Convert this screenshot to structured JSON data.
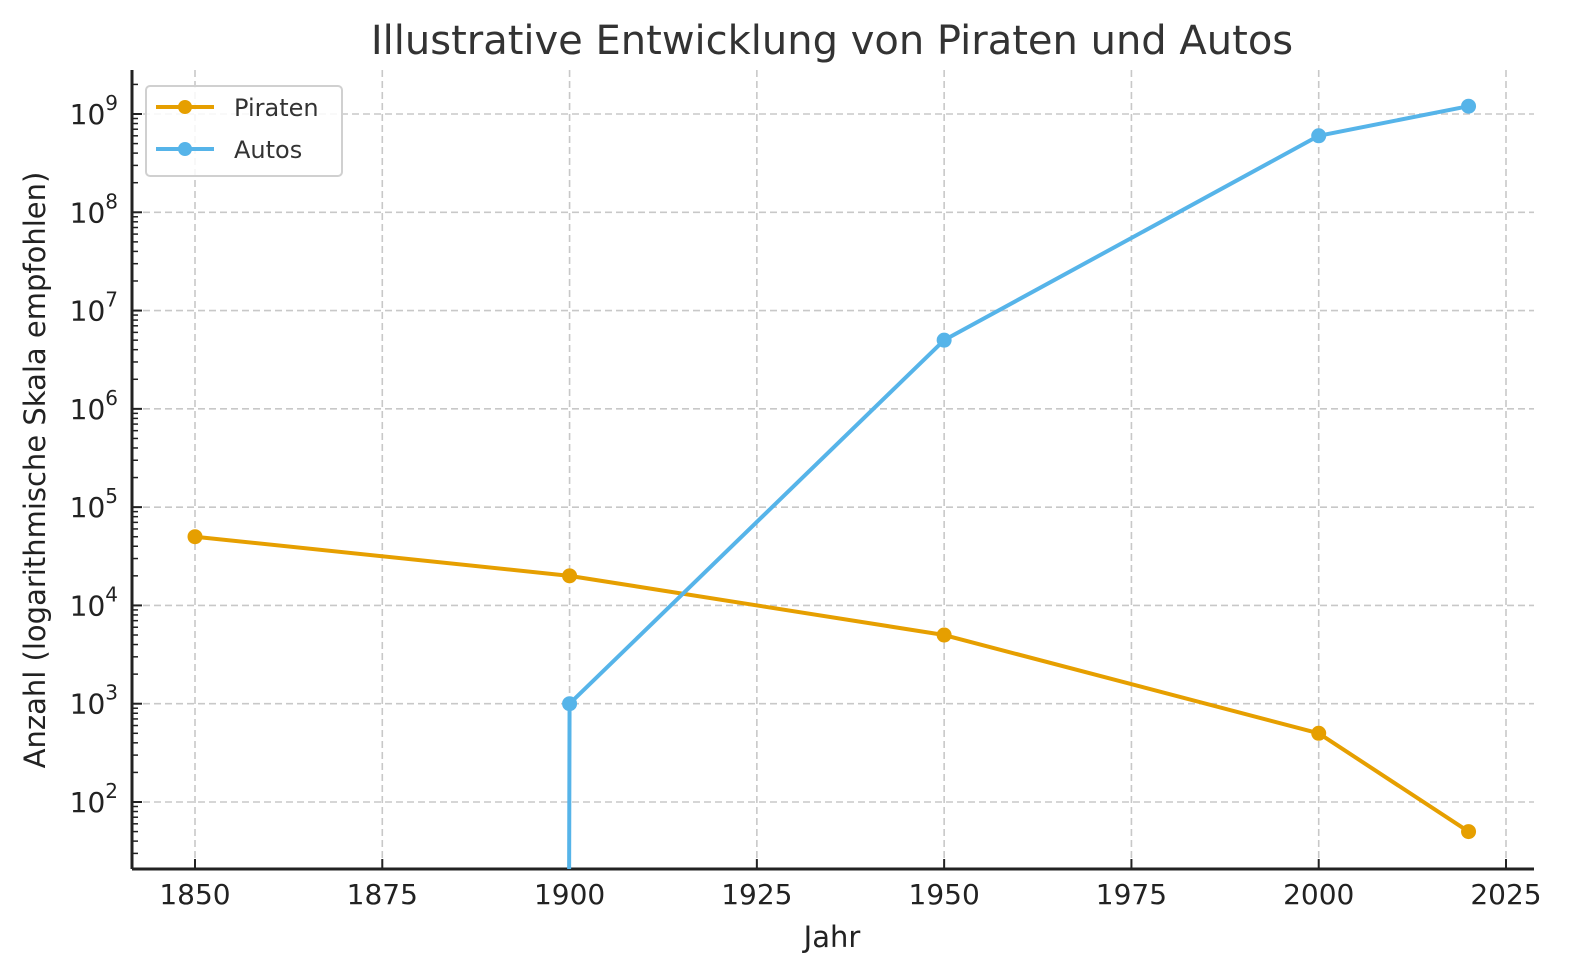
{
  "chart_data": {
    "type": "line",
    "title": "Illustrative Entwicklung von Piraten und Autos",
    "xlabel": "Jahr",
    "ylabel": "Anzahl (logarithmische Skala empfohlen)",
    "yscale": "log",
    "xlim": [
      1842,
      2029
    ],
    "ylim": [
      21,
      2800000000
    ],
    "x_ticks": [
      1850,
      1875,
      1900,
      1925,
      1950,
      1975,
      2000,
      2025
    ],
    "y_ticks": [
      {
        "exp": "2"
      },
      {
        "exp": "3"
      },
      {
        "exp": "4"
      },
      {
        "exp": "5"
      },
      {
        "exp": "6"
      },
      {
        "exp": "7"
      },
      {
        "exp": "8"
      },
      {
        "exp": "9"
      }
    ],
    "grid": true,
    "legend_position": "upper left",
    "series": [
      {
        "name": "Piraten",
        "color": "#E69F00",
        "x": [
          1850,
          1900,
          1950,
          2000,
          2020
        ],
        "values": [
          50000,
          20000,
          5000,
          500,
          50
        ]
      },
      {
        "name": "Autos",
        "color": "#56B4E9",
        "x": [
          1850,
          1900,
          1950,
          2000,
          2020
        ],
        "values": [
          0,
          1000,
          5000000,
          600000000,
          1200000000
        ]
      }
    ]
  },
  "legend": {
    "items": [
      {
        "label": "Piraten",
        "color": "#E69F00"
      },
      {
        "label": "Autos",
        "color": "#56B4E9"
      }
    ]
  }
}
